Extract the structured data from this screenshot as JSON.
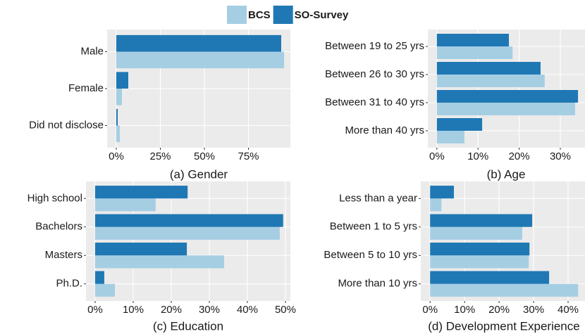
{
  "chart_data": [
    {
      "type": "bar",
      "horizontal": true,
      "title": "(a) Gender",
      "categories": [
        "Male",
        "Female",
        "Did not disclose"
      ],
      "series": [
        {
          "name": "BCS",
          "color": "#a6cee3",
          "values": [
            95.2,
            3.2,
            2.0
          ]
        },
        {
          "name": "SO-Survey",
          "color": "#1f78b4",
          "values": [
            93.6,
            6.8,
            0.8
          ]
        }
      ],
      "xlim": [
        -5.2,
        98.8
      ],
      "xticks": [
        {
          "value": 0,
          "label": "0%"
        },
        {
          "value": 25,
          "label": "25%"
        },
        {
          "value": 50,
          "label": "50%"
        },
        {
          "value": 75,
          "label": "75%"
        }
      ],
      "grid": true
    },
    {
      "type": "bar",
      "horizontal": true,
      "title": "(b) Age",
      "categories": [
        "Between 19 to 25 yrs",
        "Between 26 to 30 yrs",
        "Between 31 to 40 yrs",
        "More than 40 yrs"
      ],
      "series": [
        {
          "name": "BCS",
          "color": "#a6cee3",
          "values": [
            18.4,
            26.2,
            33.6,
            6.7
          ]
        },
        {
          "name": "SO-Survey",
          "color": "#1f78b4",
          "values": [
            17.5,
            25.2,
            34.3,
            11.0
          ]
        }
      ],
      "xlim": [
        -2.2,
        36.0
      ],
      "xticks": [
        {
          "value": 0,
          "label": "0%"
        },
        {
          "value": 10,
          "label": "10%"
        },
        {
          "value": 20,
          "label": "20%"
        },
        {
          "value": 30,
          "label": "30%"
        }
      ],
      "grid": true
    },
    {
      "type": "bar",
      "horizontal": true,
      "title": "(c) Education",
      "categories": [
        "High school",
        "Bachelors",
        "Masters",
        "Ph.D."
      ],
      "series": [
        {
          "name": "BCS",
          "color": "#a6cee3",
          "values": [
            15.9,
            48.5,
            33.9,
            5.2
          ]
        },
        {
          "name": "SO-Survey",
          "color": "#1f78b4",
          "values": [
            24.3,
            49.4,
            24.1,
            2.4
          ]
        }
      ],
      "xlim": [
        -2.4,
        51.3
      ],
      "xticks": [
        {
          "value": 0,
          "label": "0%"
        },
        {
          "value": 10,
          "label": "10%"
        },
        {
          "value": 20,
          "label": "20%"
        },
        {
          "value": 30,
          "label": "30%"
        },
        {
          "value": 40,
          "label": "40%"
        },
        {
          "value": 50,
          "label": "50%"
        }
      ],
      "grid": true
    },
    {
      "type": "bar",
      "horizontal": true,
      "title": "(d) Development Experience",
      "categories": [
        "Less than a year",
        "Between 1 to 5 yrs",
        "Between 5 to 10 yrs",
        "More than 10 yrs"
      ],
      "series": [
        {
          "name": "BCS",
          "color": "#a6cee3",
          "values": [
            3.3,
            26.7,
            28.6,
            42.9
          ]
        },
        {
          "name": "SO-Survey",
          "color": "#1f78b4",
          "values": [
            6.9,
            29.6,
            28.8,
            34.5
          ]
        }
      ],
      "xlim": [
        -2.7,
        44.9
      ],
      "xticks": [
        {
          "value": 0,
          "label": "0%"
        },
        {
          "value": 10,
          "label": "10%"
        },
        {
          "value": 20,
          "label": "20%"
        },
        {
          "value": 30,
          "label": "30%"
        },
        {
          "value": 40,
          "label": "40%"
        }
      ],
      "grid": true
    }
  ]
}
